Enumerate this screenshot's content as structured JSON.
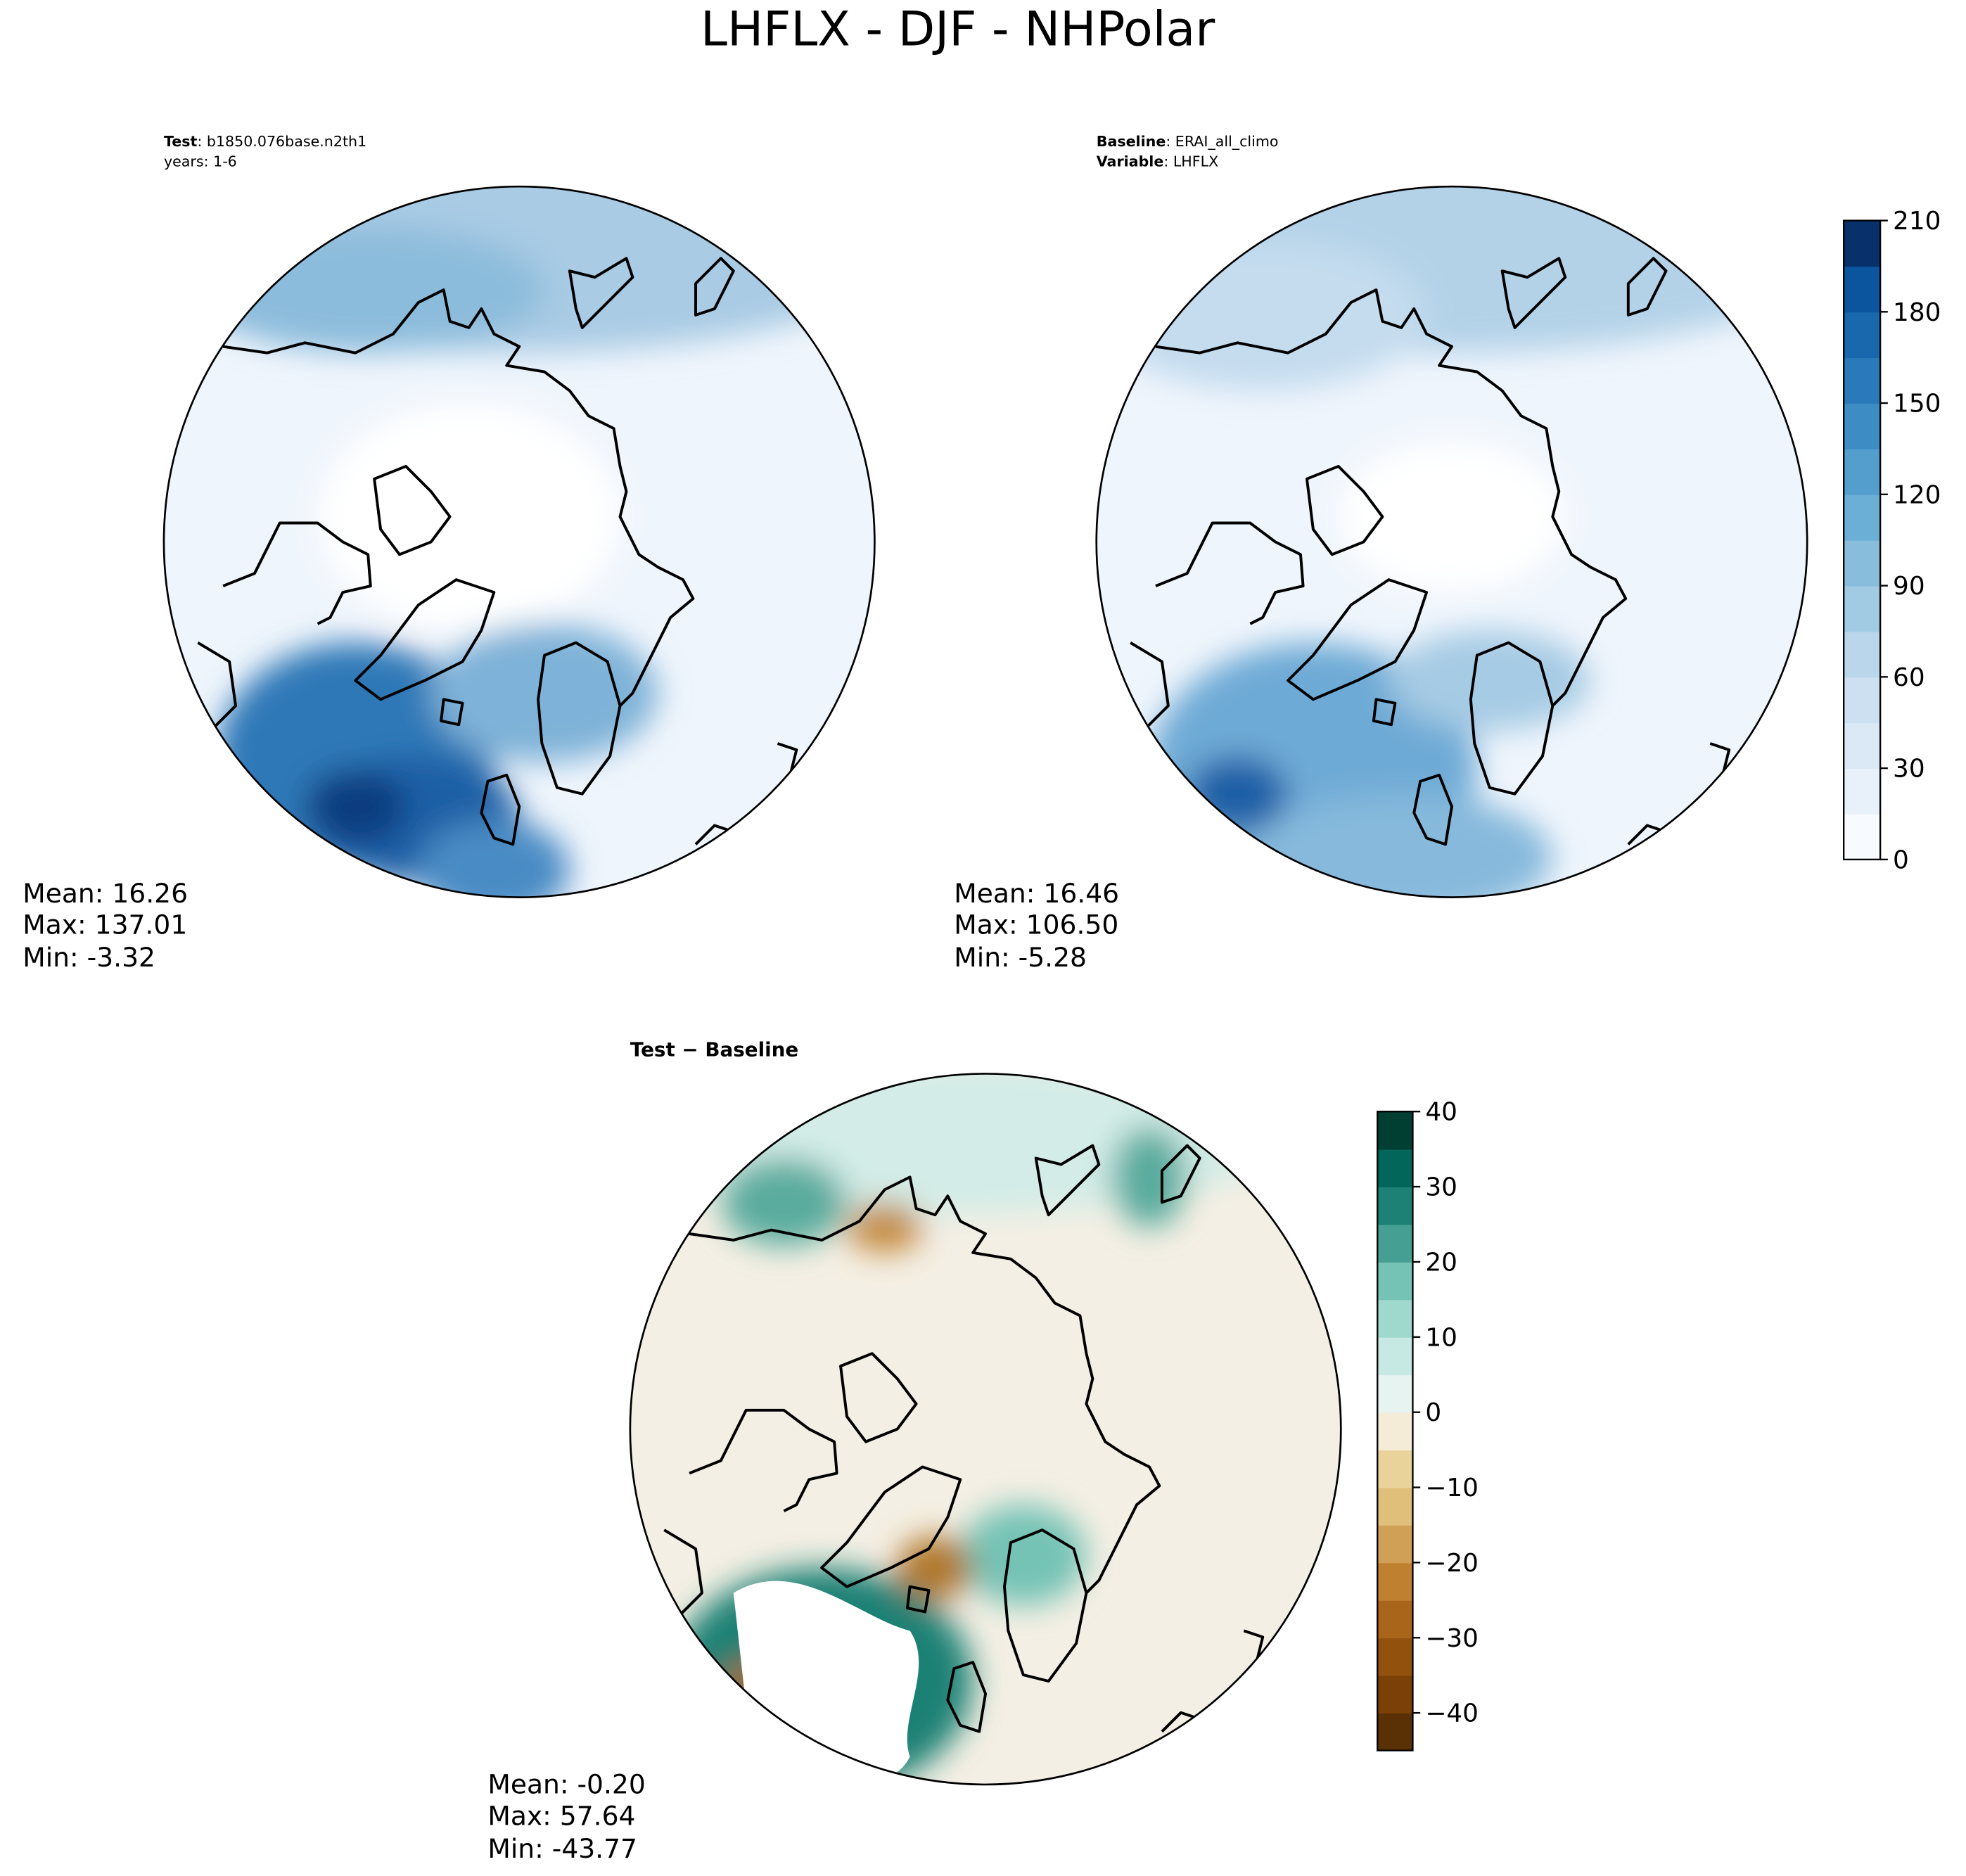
{
  "title": "LHFLX - DJF - NHPolar",
  "panels": [
    {
      "header": [
        {
          "label": "Test",
          "value": ": b1850.076base.n2th1"
        }
      ],
      "subheader": "years: 1-6",
      "stats": [
        "Mean: 16.26",
        "Max: 137.01",
        "Min: -3.32"
      ]
    },
    {
      "header": [
        {
          "label": "Baseline",
          "value": ": ERAI_all_climo"
        },
        {
          "label": "Variable",
          "value": ": LHFLX"
        }
      ],
      "stats": [
        "Mean: 16.46",
        "Max: 106.50",
        "Min: -5.28"
      ]
    },
    {
      "title": "Test − Baseline",
      "stats": [
        "Mean: -0.20",
        "Max: 57.64",
        "Min: -43.77"
      ]
    }
  ],
  "colorbars": [
    {
      "lim": [
        0,
        210
      ],
      "ticks": [
        0,
        30,
        60,
        90,
        120,
        150,
        180,
        210
      ],
      "colors": [
        "#f7fbff",
        "#e8f1fa",
        "#dbe9f6",
        "#cde0f1",
        "#bad6eb",
        "#a1cbe2",
        "#88bedc",
        "#6baed6",
        "#539ecd",
        "#3d8dc4",
        "#2a7ab9",
        "#1967ad",
        "#0b559f",
        "#08306b"
      ]
    },
    {
      "lim": [
        -45,
        40
      ],
      "ticks": [
        {
          "value": -40,
          "label": "−40"
        },
        {
          "value": -30,
          "label": "−30"
        },
        {
          "value": -20,
          "label": "−20"
        },
        {
          "value": -10,
          "label": "−10"
        },
        0,
        10,
        20,
        30,
        40
      ],
      "colors": [
        "#5a3005",
        "#7a4006",
        "#92520d",
        "#a9661a",
        "#bf8030",
        "#cfa055",
        "#dfbf7a",
        "#ead39a",
        "#f5ecd8",
        "#e6f3f0",
        "#c7e9e3",
        "#9fd9cd",
        "#74c3b5",
        "#45a093",
        "#1d8175",
        "#03665a",
        "#013f33"
      ]
    }
  ]
}
